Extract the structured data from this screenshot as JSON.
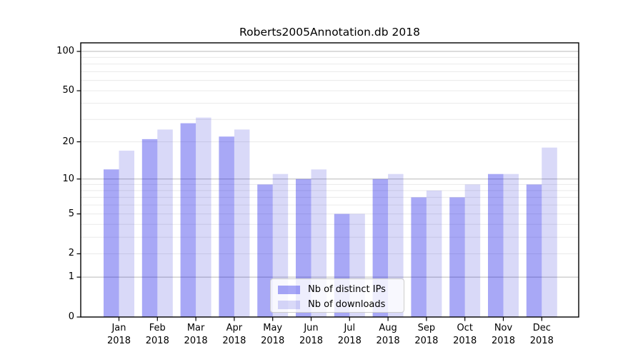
{
  "chart_data": {
    "type": "bar",
    "title": "Roberts2005Annotation.db 2018",
    "categories": [
      "Jan",
      "Feb",
      "Mar",
      "Apr",
      "May",
      "Jun",
      "Jul",
      "Aug",
      "Sep",
      "Oct",
      "Nov",
      "Dec"
    ],
    "category_year": "2018",
    "series": [
      {
        "name": "Nb of distinct IPs",
        "color": "rgba(0,0,230,0.34)",
        "values": [
          12,
          21,
          28,
          22,
          9,
          10,
          5,
          10,
          7,
          7,
          11,
          9
        ]
      },
      {
        "name": "Nb of downloads",
        "color": "rgba(0,0,210,0.15)",
        "values": [
          17,
          25,
          31,
          25,
          11,
          12,
          5,
          11,
          8,
          9,
          11,
          18
        ]
      }
    ],
    "yscale": "log1p",
    "ylim": [
      0,
      116
    ],
    "xlabel": "",
    "ylabel": "",
    "y_ticks": [
      100,
      50,
      20,
      10,
      5,
      2,
      1,
      0
    ],
    "y_tick_labels": [
      "100",
      "50",
      "20",
      "10",
      "5",
      "2",
      "1",
      "0"
    ],
    "y_major_gridlines": [
      1,
      10,
      100
    ],
    "y_minor_gridlines": [
      2,
      3,
      4,
      5,
      6,
      7,
      8,
      9,
      20,
      30,
      40,
      50,
      60,
      70,
      80,
      90
    ],
    "grid": true,
    "legend_position": "lower center"
  },
  "colors": {
    "background": "#ffffff",
    "spine": "#000000",
    "major_grid": "#b9b9b9",
    "minor_grid": "#eaeaea",
    "tick": "#000000"
  }
}
